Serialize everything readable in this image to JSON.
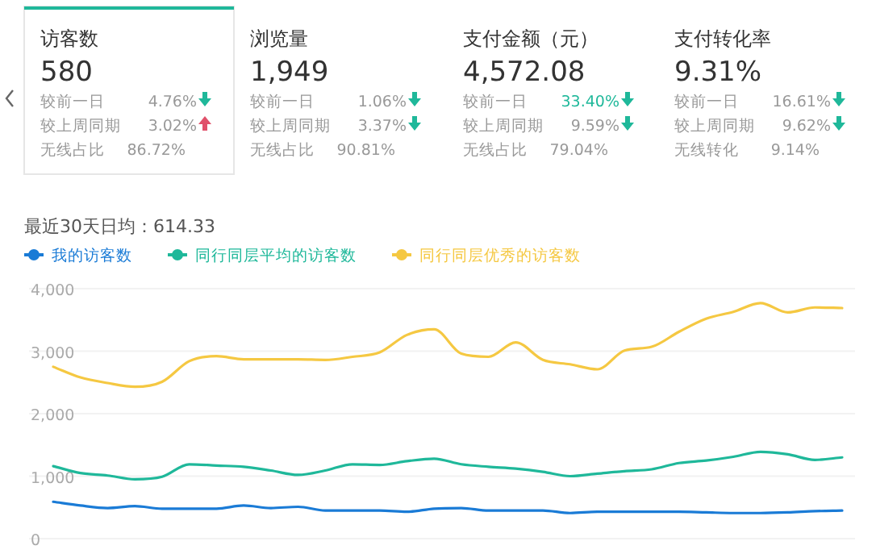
{
  "chart_data": [
    {
      "type": "other",
      "title": "访客数",
      "subtitle": "580",
      "annotations": [
        "较前一日",
        "4.76%",
        "较上周同期",
        "3.02%",
        "无线占比",
        "86.72%"
      ]
    },
    {
      "type": "other",
      "title": "浏览量",
      "subtitle": "1,949",
      "annotations": [
        "较前一日",
        "1.06%",
        "较上周同期",
        "3.37%",
        "无线占比",
        "90.81%"
      ]
    },
    {
      "type": "other",
      "title": "支付金额（元）",
      "subtitle": "4,572.08",
      "annotations": [
        "较前一日",
        "33.40%",
        "较上周同期",
        "9.59%",
        "无线占比",
        "79.04%"
      ]
    },
    {
      "type": "other",
      "title": "支付转化率",
      "subtitle": "9.31%",
      "annotations": [
        "较前一日",
        "16.61%",
        "较上周同期",
        "9.62%",
        "无线转化",
        "9.14%"
      ]
    },
    {
      "type": "line",
      "title": "最近30天日均：614.33",
      "categories": [
        null,
        null,
        null,
        null,
        null,
        null,
        null,
        null,
        null,
        null,
        null,
        null,
        null,
        null,
        null,
        null,
        null,
        null,
        null,
        null,
        null,
        null,
        null,
        null,
        null,
        null,
        null,
        null,
        null,
        null
      ],
      "ylim": [
        0,
        4000
      ],
      "yticks": [
        0,
        {
          "value": 1000,
          "label": "1,000"
        },
        {
          "value": 2000,
          "label": "2,000"
        },
        {
          "value": 3000,
          "label": "3,000"
        },
        {
          "value": 4000,
          "label": "4,000"
        }
      ],
      "grid": "y",
      "legend": "top left",
      "marker": "none",
      "line_style": "solid",
      "series": [
        {
          "name": "我的访客数",
          "color": "#1a7bd6",
          "values": [
            590,
            530,
            490,
            520,
            480,
            480,
            480,
            530,
            490,
            510,
            450,
            450,
            450,
            430,
            480,
            490,
            450,
            450,
            450,
            410,
            430,
            430,
            430,
            430,
            420,
            410,
            410,
            420,
            440,
            450
          ]
        },
        {
          "name": "同行同层平均的访客数",
          "color": "#1fb89a",
          "values": [
            1160,
            1050,
            1010,
            950,
            990,
            1190,
            1170,
            1150,
            1090,
            1020,
            1090,
            1190,
            1180,
            1240,
            1280,
            1190,
            1150,
            1120,
            1070,
            1000,
            1040,
            1080,
            1110,
            1210,
            1250,
            1310,
            1390,
            1350,
            1260,
            1300
          ]
        },
        {
          "name": "同行同层优秀的访客数",
          "color": "#f5c842",
          "values": [
            2750,
            2580,
            2490,
            2430,
            2510,
            2840,
            2920,
            2870,
            2870,
            2870,
            2860,
            2910,
            2980,
            3260,
            3350,
            2960,
            2910,
            3140,
            2860,
            2790,
            2710,
            3010,
            3070,
            3310,
            3520,
            3630,
            3770,
            3620,
            3700,
            3690
          ]
        }
      ]
    }
  ]
}
